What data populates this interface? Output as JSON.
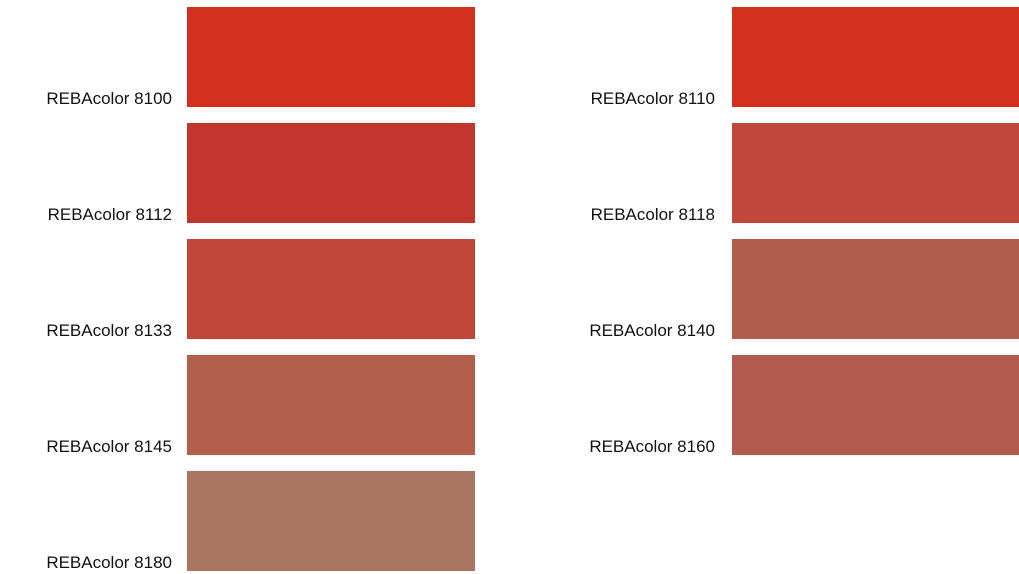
{
  "columns": [
    {
      "swatches": [
        {
          "label": "REBAcolor 8100",
          "color": "#d1301e"
        },
        {
          "label": "REBAcolor 8112",
          "color": "#c2362d"
        },
        {
          "label": "REBAcolor 8133",
          "color": "#bf4839"
        },
        {
          "label": "REBAcolor 8145",
          "color": "#b25f4b"
        },
        {
          "label": "REBAcolor 8180",
          "color": "#a97462"
        }
      ]
    },
    {
      "swatches": [
        {
          "label": "REBAcolor 8110",
          "color": "#d1301e"
        },
        {
          "label": "REBAcolor 8118",
          "color": "#c0483a"
        },
        {
          "label": "REBAcolor 8140",
          "color": "#b25c4e"
        },
        {
          "label": "REBAcolor 8160",
          "color": "#b25a4f"
        }
      ]
    }
  ]
}
